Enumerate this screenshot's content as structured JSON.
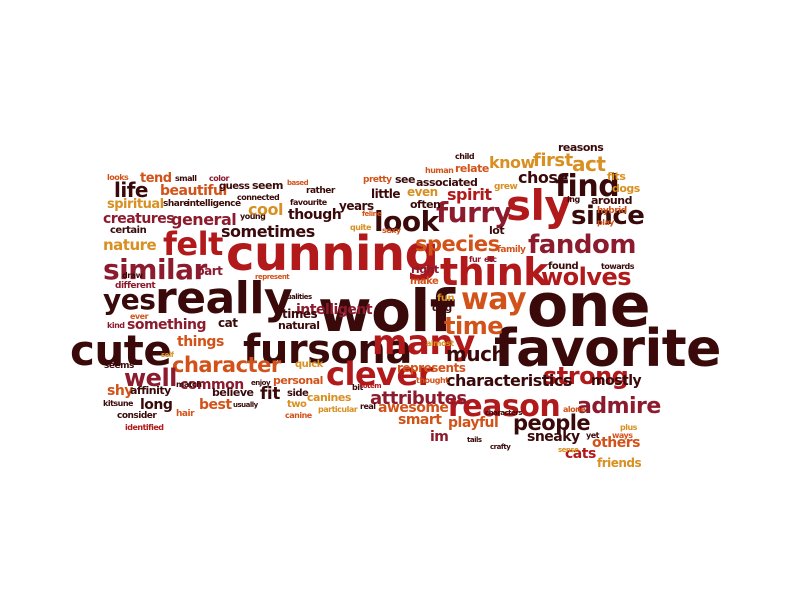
{
  "palette": {
    "dark": "#3a0a0a",
    "red": "#b1191b",
    "crimson": "#8d1b2e",
    "orange": "#d2531a",
    "gold": "#d79021"
  },
  "words": [
    {
      "text": "favorite",
      "color": "#3a0a0a"
    },
    {
      "text": "one",
      "color": "#3a0a0a"
    },
    {
      "text": "wolf",
      "color": "#3a0a0a"
    },
    {
      "text": "really",
      "color": "#3a0a0a"
    },
    {
      "text": "cunning",
      "color": "#b1191b"
    },
    {
      "text": "cute",
      "color": "#3a0a0a"
    },
    {
      "text": "fursona",
      "color": "#3a0a0a"
    },
    {
      "text": "think",
      "color": "#b1191b"
    },
    {
      "text": "sly",
      "color": "#b1191b"
    },
    {
      "text": "many",
      "color": "#b1191b"
    },
    {
      "text": "clever",
      "color": "#b1191b"
    },
    {
      "text": "reason",
      "color": "#b1191b"
    },
    {
      "text": "felt",
      "color": "#b1191b"
    },
    {
      "text": "similar",
      "color": "#8d1b2e"
    },
    {
      "text": "yes",
      "color": "#3a0a0a"
    },
    {
      "text": "find",
      "color": "#3a0a0a"
    },
    {
      "text": "fandom",
      "color": "#8d1b2e"
    },
    {
      "text": "wolves",
      "color": "#b1191b"
    },
    {
      "text": "furry",
      "color": "#8d1b2e"
    },
    {
      "text": "look",
      "color": "#3a0a0a"
    },
    {
      "text": "since",
      "color": "#3a0a0a"
    },
    {
      "text": "way",
      "color": "#d2531a"
    },
    {
      "text": "time",
      "color": "#d2531a"
    },
    {
      "text": "species",
      "color": "#d2531a"
    },
    {
      "text": "character",
      "color": "#d2531a"
    },
    {
      "text": "well",
      "color": "#8d1b2e"
    },
    {
      "text": "strong",
      "color": "#b1191b"
    },
    {
      "text": "much",
      "color": "#3a0a0a"
    },
    {
      "text": "people",
      "color": "#3a0a0a"
    },
    {
      "text": "admire",
      "color": "#8d1b2e"
    },
    {
      "text": "attributes",
      "color": "#8d1b2e"
    },
    {
      "text": "characteristics",
      "color": "#3a0a0a"
    },
    {
      "text": "life",
      "color": "#3a0a0a"
    },
    {
      "text": "spirit",
      "color": "#b1191b"
    },
    {
      "text": "chose",
      "color": "#3a0a0a"
    },
    {
      "text": "act",
      "color": "#d79021"
    },
    {
      "text": "first",
      "color": "#d79021"
    },
    {
      "text": "know",
      "color": "#d79021"
    },
    {
      "text": "intelligent",
      "color": "#8d1b2e"
    },
    {
      "text": "sometimes",
      "color": "#3a0a0a"
    },
    {
      "text": "general",
      "color": "#8d1b2e"
    },
    {
      "text": "creatures",
      "color": "#8d1b2e"
    },
    {
      "text": "nature",
      "color": "#d79021"
    },
    {
      "text": "cool",
      "color": "#d79021"
    },
    {
      "text": "though",
      "color": "#3a0a0a"
    },
    {
      "text": "beautiful",
      "color": "#d2531a"
    },
    {
      "text": "tend",
      "color": "#d2531a"
    },
    {
      "text": "spiritual",
      "color": "#d79021"
    },
    {
      "text": "something",
      "color": "#8d1b2e"
    },
    {
      "text": "things",
      "color": "#d2531a"
    },
    {
      "text": "common",
      "color": "#8d1b2e"
    },
    {
      "text": "fit",
      "color": "#3a0a0a"
    },
    {
      "text": "best",
      "color": "#d2531a"
    },
    {
      "text": "long",
      "color": "#3a0a0a"
    },
    {
      "text": "shy",
      "color": "#d2531a"
    },
    {
      "text": "smart",
      "color": "#d2531a"
    },
    {
      "text": "awesome",
      "color": "#d2531a"
    },
    {
      "text": "playful",
      "color": "#d2531a"
    },
    {
      "text": "sneaky",
      "color": "#3a0a0a"
    },
    {
      "text": "others",
      "color": "#d2531a"
    },
    {
      "text": "cats",
      "color": "#b1191b"
    },
    {
      "text": "friends",
      "color": "#d79021"
    },
    {
      "text": "mostly",
      "color": "#3a0a0a"
    },
    {
      "text": "im",
      "color": "#8d1b2e"
    },
    {
      "text": "represents",
      "color": "#d2531a"
    },
    {
      "text": "cat",
      "color": "#3a0a0a"
    },
    {
      "text": "times",
      "color": "#3a0a0a"
    },
    {
      "text": "natural",
      "color": "#3a0a0a"
    },
    {
      "text": "part",
      "color": "#8d1b2e"
    },
    {
      "text": "years",
      "color": "#3a0a0a"
    },
    {
      "text": "little",
      "color": "#3a0a0a"
    },
    {
      "text": "associated",
      "color": "#3a0a0a"
    },
    {
      "text": "see",
      "color": "#3a0a0a"
    },
    {
      "text": "relate",
      "color": "#d2531a"
    },
    {
      "text": "even",
      "color": "#d79021"
    },
    {
      "text": "often",
      "color": "#3a0a0a"
    },
    {
      "text": "lot",
      "color": "#3a0a0a"
    },
    {
      "text": "reasons",
      "color": "#3a0a0a"
    },
    {
      "text": "fits",
      "color": "#d79021"
    },
    {
      "text": "dogs",
      "color": "#d79021"
    },
    {
      "text": "around",
      "color": "#3a0a0a"
    },
    {
      "text": "hybrid",
      "color": "#d2531a"
    },
    {
      "text": "found",
      "color": "#3a0a0a"
    },
    {
      "text": "right",
      "color": "#8d1b2e"
    },
    {
      "text": "make",
      "color": "#d2531a"
    },
    {
      "text": "fun",
      "color": "#d79021"
    },
    {
      "text": "dog",
      "color": "#3a0a0a"
    },
    {
      "text": "quick",
      "color": "#d79021"
    },
    {
      "text": "personal",
      "color": "#d2531a"
    },
    {
      "text": "canines",
      "color": "#d79021"
    },
    {
      "text": "side",
      "color": "#3a0a0a"
    },
    {
      "text": "two",
      "color": "#d79021"
    },
    {
      "text": "affinity",
      "color": "#3a0a0a"
    },
    {
      "text": "believe",
      "color": "#3a0a0a"
    },
    {
      "text": "consider",
      "color": "#3a0a0a"
    },
    {
      "text": "seems",
      "color": "#3a0a0a"
    },
    {
      "text": "different",
      "color": "#8d1b2e"
    },
    {
      "text": "certain",
      "color": "#3a0a0a"
    },
    {
      "text": "seem",
      "color": "#3a0a0a"
    },
    {
      "text": "guess",
      "color": "#3a0a0a"
    },
    {
      "text": "share",
      "color": "#3a0a0a"
    },
    {
      "text": "intelligence",
      "color": "#3a0a0a"
    },
    {
      "text": "color",
      "color": "#8d1b2e"
    },
    {
      "text": "small",
      "color": "#3a0a0a"
    },
    {
      "text": "looks",
      "color": "#d2531a"
    },
    {
      "text": "young",
      "color": "#3a0a0a"
    },
    {
      "text": "draw",
      "color": "#3a0a0a"
    },
    {
      "text": "pretty",
      "color": "#d2531a"
    },
    {
      "text": "human",
      "color": "#d2531a"
    },
    {
      "text": "child",
      "color": "#3a0a0a"
    },
    {
      "text": "grew",
      "color": "#d79021"
    },
    {
      "text": "family",
      "color": "#d2531a"
    },
    {
      "text": "etc",
      "color": "#8d1b2e"
    },
    {
      "text": "fur",
      "color": "#8d1b2e"
    },
    {
      "text": "towards",
      "color": "#3a0a0a"
    },
    {
      "text": "play",
      "color": "#d2531a"
    },
    {
      "text": "ing",
      "color": "#3a0a0a"
    },
    {
      "text": "hair",
      "color": "#d2531a"
    },
    {
      "text": "kitsune",
      "color": "#3a0a0a"
    },
    {
      "text": "identified",
      "color": "#b1191b"
    },
    {
      "text": "match",
      "color": "#3a0a0a"
    },
    {
      "text": "enjoy",
      "color": "#3a0a0a"
    },
    {
      "text": "usually",
      "color": "#3a0a0a"
    },
    {
      "text": "canine",
      "color": "#d2531a"
    },
    {
      "text": "particular",
      "color": "#d79021"
    },
    {
      "text": "real",
      "color": "#3a0a0a"
    },
    {
      "text": "bit",
      "color": "#3a0a0a"
    },
    {
      "text": "totem",
      "color": "#b1191b"
    },
    {
      "text": "thought",
      "color": "#d2531a"
    },
    {
      "text": "almost",
      "color": "#d79021"
    },
    {
      "text": "alone",
      "color": "#d2531a"
    },
    {
      "text": "plus",
      "color": "#d79021"
    },
    {
      "text": "yet",
      "color": "#3a0a0a"
    },
    {
      "text": "ways",
      "color": "#d2531a"
    },
    {
      "text": "sense",
      "color": "#d79021"
    },
    {
      "text": "crafty",
      "color": "#3a0a0a"
    },
    {
      "text": "tails",
      "color": "#3a0a0a"
    },
    {
      "text": "characters",
      "color": "#3a0a0a"
    },
    {
      "text": "qualities",
      "color": "#3a0a0a"
    },
    {
      "text": "represent",
      "color": "#d2531a"
    },
    {
      "text": "sexy",
      "color": "#d2531a"
    },
    {
      "text": "feline",
      "color": "#d2531a"
    },
    {
      "text": "quite",
      "color": "#d79021"
    },
    {
      "text": "favourite",
      "color": "#3a0a0a"
    },
    {
      "text": "rather",
      "color": "#3a0a0a"
    },
    {
      "text": "connected",
      "color": "#3a0a0a"
    },
    {
      "text": "based",
      "color": "#d2531a"
    },
    {
      "text": "ever",
      "color": "#d2531a"
    },
    {
      "text": "kind",
      "color": "#8d1b2e"
    },
    {
      "text": "self",
      "color": "#d79021"
    }
  ]
}
